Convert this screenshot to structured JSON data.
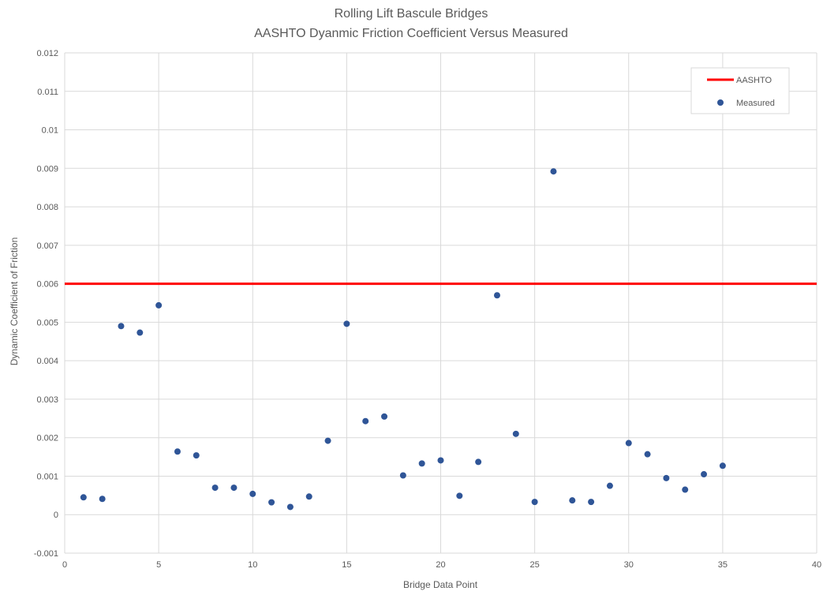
{
  "chart_data": {
    "type": "scatter",
    "title": "Rolling Lift Bascule Bridges",
    "subtitle": "AASHTO Dyanmic Friction Coefficient Versus Measured",
    "xlabel": "Bridge Data Point",
    "ylabel": "Dynamic Coefficient of Friction",
    "xlim": [
      0,
      40
    ],
    "ylim": [
      -0.001,
      0.012
    ],
    "x_ticks": [
      "0",
      "5",
      "10",
      "15",
      "20",
      "25",
      "30",
      "35",
      "40"
    ],
    "y_ticks": [
      "-0.001",
      "0",
      "0.001",
      "0.002",
      "0.003",
      "0.004",
      "0.005",
      "0.006",
      "0.007",
      "0.008",
      "0.009",
      "0.01",
      "0.011",
      "0.012"
    ],
    "grid": true,
    "legend_position": "top-right",
    "series": [
      {
        "name": "AASHTO",
        "type": "line",
        "color": "#ff0000",
        "x": [
          0,
          40
        ],
        "y": [
          0.006,
          0.006
        ]
      },
      {
        "name": "Measured",
        "type": "scatter",
        "color": "#2f5597",
        "x": [
          1,
          2,
          3,
          4,
          5,
          6,
          7,
          8,
          9,
          10,
          11,
          12,
          13,
          14,
          15,
          16,
          17,
          18,
          19,
          20,
          21,
          22,
          23,
          24,
          25,
          26,
          27,
          28,
          29,
          30,
          31,
          32,
          33,
          34,
          35
        ],
        "y": [
          0.00045,
          0.00041,
          0.0049,
          0.00473,
          0.00544,
          0.00164,
          0.00154,
          0.0007,
          0.0007,
          0.00054,
          0.00032,
          0.0002,
          0.00047,
          0.00192,
          0.00496,
          0.00243,
          0.00255,
          0.00102,
          0.00133,
          0.00141,
          0.00049,
          0.00137,
          0.0057,
          0.0021,
          0.00033,
          0.00892,
          0.00037,
          0.00033,
          0.00075,
          0.00186,
          0.00157,
          0.00095,
          0.00065,
          0.00105,
          0.00127
        ]
      }
    ]
  }
}
